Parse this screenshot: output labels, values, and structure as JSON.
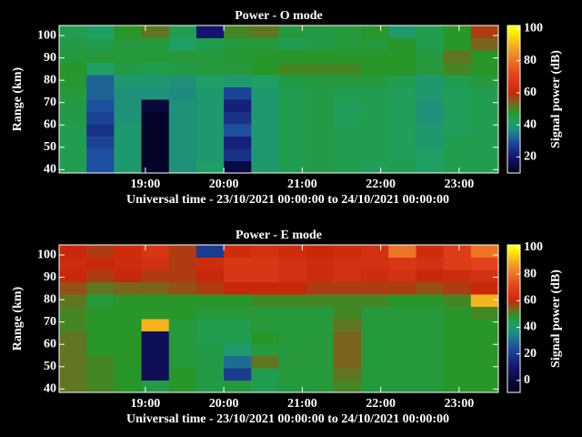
{
  "chart_data": [
    {
      "type": "heatmap",
      "title": "Power - O mode",
      "xlabel": "Universal time - 23/10/2021 00:00:00 to 24/10/2021 00:00:00",
      "ylabel": "Range (km)",
      "colorbar_label": "Signal power (dB)",
      "xlim": [
        17.9,
        23.5
      ],
      "ylim": [
        38.5,
        104.5
      ],
      "xticks": [
        {
          "value": 19,
          "label": "19:00"
        },
        {
          "value": 20,
          "label": "20:00"
        },
        {
          "value": 21,
          "label": "21:00"
        },
        {
          "value": 22,
          "label": "22:00"
        },
        {
          "value": 23,
          "label": "23:00"
        }
      ],
      "yticks": [
        40,
        50,
        60,
        70,
        80,
        90,
        100
      ],
      "clim": [
        10,
        102
      ],
      "cticks": [
        20,
        40,
        60,
        80,
        100
      ],
      "colormap": [
        {
          "value": 10,
          "color": "#000018"
        },
        {
          "value": 20,
          "color": "#14146e"
        },
        {
          "value": 30,
          "color": "#1e50a0"
        },
        {
          "value": 36,
          "color": "#1e8a82"
        },
        {
          "value": 42,
          "color": "#1ea064"
        },
        {
          "value": 48,
          "color": "#289628"
        },
        {
          "value": 53,
          "color": "#6e6e1e"
        },
        {
          "value": 60,
          "color": "#c8280a"
        },
        {
          "value": 72,
          "color": "#e6461e"
        },
        {
          "value": 86,
          "color": "#f09628"
        },
        {
          "value": 100,
          "color": "#ffff00"
        }
      ],
      "x_edges": [
        17.9,
        18.25,
        18.6,
        18.95,
        19.3,
        19.65,
        20.0,
        20.35,
        20.7,
        21.05,
        21.4,
        21.75,
        22.1,
        22.45,
        22.8,
        23.15,
        23.5
      ],
      "y_edges": [
        38.5,
        44,
        49.5,
        55,
        60.5,
        66,
        71.5,
        77,
        82.5,
        88,
        93.5,
        99,
        104.5
      ],
      "z": [
        [
          44,
          30,
          40,
          12,
          38,
          42,
          15,
          40,
          44,
          45,
          44,
          43,
          44,
          42,
          44,
          44
        ],
        [
          44,
          30,
          40,
          12,
          38,
          40,
          25,
          40,
          44,
          45,
          44,
          44,
          43,
          42,
          44,
          44
        ],
        [
          44,
          28,
          40,
          12,
          38,
          40,
          22,
          40,
          44,
          45,
          44,
          44,
          43,
          40,
          44,
          44
        ],
        [
          44,
          25,
          40,
          12,
          38,
          40,
          30,
          40,
          44,
          45,
          44,
          44,
          43,
          40,
          43,
          44
        ],
        [
          45,
          28,
          38,
          12,
          38,
          40,
          25,
          40,
          44,
          45,
          43,
          44,
          43,
          38,
          43,
          44
        ],
        [
          45,
          30,
          38,
          14,
          38,
          40,
          22,
          40,
          44,
          45,
          43,
          44,
          43,
          38,
          43,
          44
        ],
        [
          46,
          32,
          38,
          38,
          36,
          40,
          28,
          40,
          44,
          45,
          44,
          44,
          43,
          40,
          43,
          44
        ],
        [
          47,
          32,
          40,
          40,
          38,
          42,
          40,
          42,
          45,
          46,
          46,
          46,
          44,
          40,
          44,
          46
        ],
        [
          48,
          42,
          45,
          44,
          45,
          46,
          46,
          48,
          50,
          50,
          50,
          48,
          48,
          46,
          50,
          48
        ],
        [
          46,
          46,
          46,
          46,
          46,
          46,
          47,
          48,
          48,
          48,
          48,
          48,
          48,
          46,
          52,
          48
        ],
        [
          45,
          44,
          46,
          46,
          42,
          44,
          46,
          46,
          44,
          45,
          46,
          46,
          48,
          44,
          48,
          54
        ],
        [
          44,
          42,
          48,
          52,
          44,
          20,
          50,
          52,
          46,
          45,
          46,
          48,
          40,
          44,
          48,
          58
        ]
      ]
    },
    {
      "type": "heatmap",
      "title": "Power - E mode",
      "xlabel": "Universal time - 23/10/2021 00:00:00 to 24/10/2021 00:00:00",
      "ylabel": "Range (km)",
      "colorbar_label": "Signal power (dB)",
      "xlim": [
        17.9,
        23.5
      ],
      "ylim": [
        38.5,
        104.5
      ],
      "xticks": [
        {
          "value": 19,
          "label": "19:00"
        },
        {
          "value": 20,
          "label": "20:00"
        },
        {
          "value": 21,
          "label": "21:00"
        },
        {
          "value": 22,
          "label": "22:00"
        },
        {
          "value": 23,
          "label": "23:00"
        }
      ],
      "yticks": [
        40,
        50,
        60,
        70,
        80,
        90,
        100
      ],
      "clim": [
        -9,
        102
      ],
      "cticks": [
        0,
        20,
        40,
        60,
        80,
        100
      ],
      "colormap": [
        {
          "value": -9,
          "color": "#000018"
        },
        {
          "value": 10,
          "color": "#14146e"
        },
        {
          "value": 25,
          "color": "#1e50a0"
        },
        {
          "value": 35,
          "color": "#1e8a82"
        },
        {
          "value": 42,
          "color": "#1ea064"
        },
        {
          "value": 48,
          "color": "#289628"
        },
        {
          "value": 53,
          "color": "#6e6e1e"
        },
        {
          "value": 60,
          "color": "#c8280a"
        },
        {
          "value": 72,
          "color": "#e6461e"
        },
        {
          "value": 86,
          "color": "#f09628"
        },
        {
          "value": 100,
          "color": "#ffff00"
        }
      ],
      "x_edges": [
        17.9,
        18.25,
        18.6,
        18.95,
        19.3,
        19.65,
        20.0,
        20.35,
        20.7,
        21.05,
        21.4,
        21.75,
        22.1,
        22.45,
        22.8,
        23.15,
        23.5
      ],
      "y_edges": [
        38.5,
        44,
        49.5,
        55,
        60.5,
        66,
        71.5,
        77,
        82.5,
        88,
        93.5,
        99,
        104.5
      ],
      "z": [
        [
          52,
          50,
          48,
          45,
          48,
          45,
          46,
          44,
          46,
          46,
          50,
          46,
          46,
          46,
          48,
          48
        ],
        [
          52,
          50,
          48,
          5,
          48,
          45,
          20,
          44,
          46,
          46,
          52,
          46,
          46,
          46,
          48,
          48
        ],
        [
          52,
          50,
          48,
          5,
          46,
          45,
          30,
          52,
          46,
          46,
          54,
          46,
          46,
          46,
          48,
          48
        ],
        [
          52,
          48,
          48,
          5,
          46,
          45,
          40,
          46,
          46,
          46,
          54,
          46,
          46,
          46,
          48,
          48
        ],
        [
          52,
          48,
          48,
          5,
          46,
          44,
          44,
          48,
          46,
          46,
          54,
          46,
          46,
          46,
          48,
          48
        ],
        [
          50,
          48,
          48,
          90,
          46,
          44,
          44,
          46,
          46,
          46,
          52,
          46,
          46,
          46,
          48,
          48
        ],
        [
          50,
          48,
          48,
          48,
          48,
          46,
          46,
          46,
          46,
          46,
          50,
          46,
          46,
          46,
          48,
          50
        ],
        [
          52,
          46,
          48,
          48,
          48,
          48,
          48,
          50,
          50,
          50,
          50,
          50,
          48,
          48,
          50,
          90
        ],
        [
          56,
          52,
          54,
          54,
          56,
          58,
          60,
          60,
          60,
          58,
          58,
          58,
          58,
          56,
          58,
          60
        ],
        [
          60,
          58,
          60,
          58,
          58,
          60,
          66,
          66,
          64,
          62,
          64,
          62,
          64,
          60,
          62,
          64
        ],
        [
          62,
          60,
          62,
          64,
          58,
          62,
          66,
          66,
          64,
          62,
          64,
          64,
          66,
          64,
          68,
          70
        ],
        [
          60,
          58,
          62,
          66,
          58,
          20,
          62,
          64,
          62,
          60,
          62,
          64,
          80,
          62,
          68,
          80
        ]
      ]
    }
  ]
}
